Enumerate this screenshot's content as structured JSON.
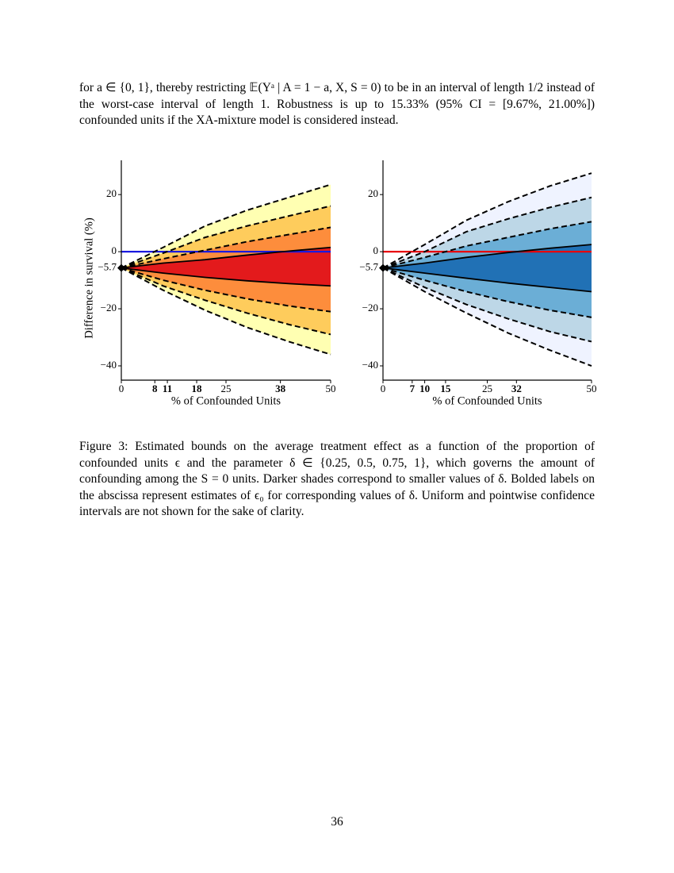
{
  "paragraph": "for a ∈ {0, 1}, thereby restricting 𝔼(Yᵃ | A = 1 − a, X, S = 0) to be in an interval of length 1/2 instead of the worst-case interval of length 1. Robustness is up to 15.33% (95% CI = [9.67%, 21.00%]) confounded units if the XA-mixture model is considered instead.",
  "chart_data": [
    {
      "type": "band",
      "ylabel": "Difference in survival (%)",
      "xlabel": "% of Confounded Units",
      "xlim": [
        0,
        50
      ],
      "ylim": [
        -45,
        32
      ],
      "xticks": [
        0,
        25,
        50
      ],
      "yticks": [
        20,
        0,
        {
          "value": -5.7,
          "label": "−5.7"
        },
        {
          "value": -20,
          "label": "−20"
        },
        {
          "value": -40,
          "label": "−40"
        }
      ],
      "eps0_ticks": [
        8,
        11,
        18,
        38
      ],
      "eps0_color": "#1010d0",
      "hline": {
        "value": 0,
        "color": "#1a1ae0"
      },
      "point": {
        "x": 0,
        "y": -5.7
      },
      "x": [
        0,
        10,
        20,
        30,
        40,
        50
      ],
      "bands": [
        {
          "color": "#ffffb2",
          "dash": true,
          "upper": [
            -5.7,
            1.5,
            9,
            14.5,
            19,
            23.5
          ],
          "lower": [
            -5.7,
            -13.5,
            -20.5,
            -26.5,
            -31.5,
            -36
          ]
        },
        {
          "color": "#fecc5c",
          "dash": true,
          "upper": [
            -5.7,
            -0.5,
            5,
            9,
            12.5,
            16
          ],
          "lower": [
            -5.7,
            -12,
            -17,
            -21.5,
            -25.5,
            -29
          ]
        },
        {
          "color": "#fd8d3c",
          "dash": true,
          "upper": [
            -5.7,
            -2.5,
            0.5,
            3.5,
            6,
            8.5
          ],
          "lower": [
            -5.7,
            -10,
            -13.5,
            -16.5,
            -19,
            -21
          ]
        },
        {
          "color": "#e31a1c",
          "dash": false,
          "upper": [
            -5.7,
            -4,
            -2.8,
            -1.2,
            0.2,
            1.5
          ],
          "lower": [
            -5.7,
            -7.5,
            -9,
            -10.2,
            -11.2,
            -12
          ]
        }
      ]
    },
    {
      "type": "band",
      "xlabel": "% of Confounded Units",
      "xlim": [
        0,
        50
      ],
      "ylim": [
        -45,
        32
      ],
      "xticks": [
        0,
        25,
        50
      ],
      "yticks": [
        20,
        0,
        {
          "value": -5.7,
          "label": "−5.7"
        },
        {
          "value": -20,
          "label": "−20"
        },
        {
          "value": -40,
          "label": "−40"
        }
      ],
      "eps0_ticks": [
        7,
        10,
        15,
        32
      ],
      "eps0_color": "#e00000",
      "hline": {
        "value": 0,
        "color": "#e8000b"
      },
      "point": {
        "x": 0,
        "y": -5.7
      },
      "x": [
        0,
        10,
        20,
        30,
        40,
        50
      ],
      "bands": [
        {
          "color": "#eff3ff",
          "dash": true,
          "upper": [
            -5.7,
            2.5,
            11,
            17.5,
            23,
            27.5
          ],
          "lower": [
            -5.7,
            -14,
            -21.5,
            -28.5,
            -34.5,
            -40
          ]
        },
        {
          "color": "#bdd7e7",
          "dash": true,
          "upper": [
            -5.7,
            0,
            7,
            11.5,
            15.5,
            19
          ],
          "lower": [
            -5.7,
            -12.5,
            -18.5,
            -23.5,
            -28,
            -31.5
          ]
        },
        {
          "color": "#6baed6",
          "dash": true,
          "upper": [
            -5.7,
            -2,
            2,
            5,
            8,
            10.5
          ],
          "lower": [
            -5.7,
            -10,
            -14,
            -17.5,
            -20.5,
            -23
          ]
        },
        {
          "color": "#2171b5",
          "dash": false,
          "upper": [
            -5.7,
            -4,
            -2,
            -0.3,
            1.2,
            2.5
          ],
          "lower": [
            -5.7,
            -7.5,
            -9.3,
            -11,
            -12.5,
            -14
          ]
        }
      ]
    }
  ],
  "caption": "Figure 3:  Estimated bounds on the average treatment effect as a function of the proportion of confounded units ϵ and the parameter δ ∈ {0.25, 0.5, 0.75, 1}, which governs the amount of confounding among the S = 0 units. Darker shades correspond to smaller values of δ. Bolded labels on the abscissa represent estimates of ϵ₀ for corresponding values of δ. Uniform and pointwise confidence intervals are not shown for the sake of clarity.",
  "page_number": "36"
}
